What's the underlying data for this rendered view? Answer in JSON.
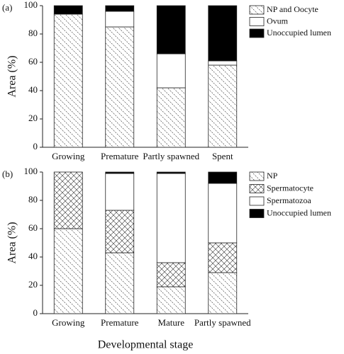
{
  "chart_data": [
    {
      "type": "bar",
      "stacked": true,
      "panel_label": "(a)",
      "y_label": "Area (%)",
      "categories": [
        "Growing",
        "Premature",
        "Partly spawned",
        "Spent"
      ],
      "series": [
        {
          "name": "NP and Oocyte",
          "color": "#ffffff",
          "pattern": "diagonal",
          "values": [
            94,
            85,
            42,
            58
          ]
        },
        {
          "name": "Ovum",
          "color": "#ffffff",
          "pattern": "none",
          "values": [
            0,
            11,
            24,
            3
          ]
        },
        {
          "name": "Unoccupied lumen",
          "color": "#000000",
          "pattern": "none",
          "values": [
            6,
            4,
            34,
            39
          ]
        }
      ],
      "ylim": [
        0,
        100
      ],
      "yticks": [
        0,
        20,
        40,
        60,
        80,
        100
      ],
      "legend": "right"
    },
    {
      "type": "bar",
      "stacked": true,
      "panel_label": "(b)",
      "y_label": "Area (%)",
      "x_label": "Developmental stage",
      "categories": [
        "Growing",
        "Premature",
        "Mature",
        "Partly spawned"
      ],
      "series": [
        {
          "name": "NP",
          "color": "#ffffff",
          "pattern": "diagonal",
          "values": [
            60,
            43,
            19,
            29
          ]
        },
        {
          "name": "Spermatocyte",
          "color": "#ffffff",
          "pattern": "crosshatch",
          "values": [
            40,
            30,
            17,
            21
          ]
        },
        {
          "name": "Spermatozoa",
          "color": "#ffffff",
          "pattern": "none",
          "values": [
            0,
            26,
            63,
            42
          ]
        },
        {
          "name": "Unoccupied lumen",
          "color": "#000000",
          "pattern": "none",
          "values": [
            0,
            1,
            1,
            8
          ]
        }
      ],
      "ylim": [
        0,
        100
      ],
      "yticks": [
        0,
        20,
        40,
        60,
        80,
        100
      ],
      "legend": "right"
    }
  ]
}
